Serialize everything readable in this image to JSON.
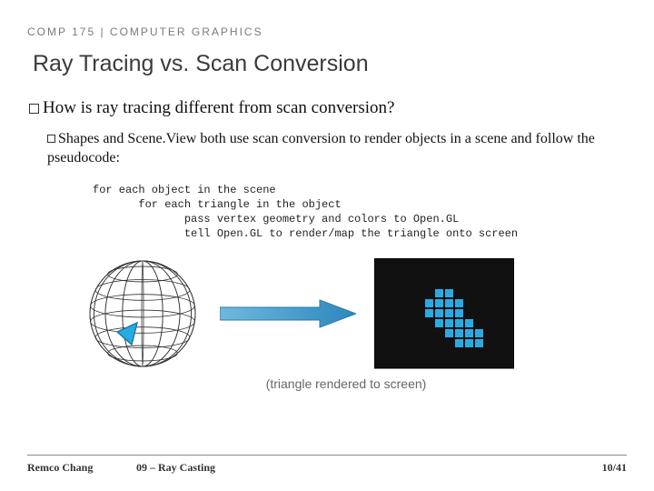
{
  "header": {
    "course": "COMP 175 | COMPUTER GRAPHICS"
  },
  "title": "Ray Tracing vs. Scan Conversion",
  "bullets": {
    "main": "How is ray tracing different from scan conversion?",
    "sub": "Shapes and Scene.View both use scan conversion to render objects in a scene and follow the pseudocode:"
  },
  "code": {
    "l1": "for each object in the scene",
    "l2": "       for each triangle in the object",
    "l3": "              pass vertex geometry and colors to Open.GL",
    "l4": "              tell Open.GL to render/map the triangle onto screen"
  },
  "diagram": {
    "sphere": {
      "stroke": "#333333",
      "triangle_fill": "#29abe2",
      "triangle_stroke": "#1a7aa8"
    },
    "arrow": {
      "fill": "#3d9bd6"
    },
    "grid": {
      "cols": 14,
      "rows": 11,
      "bg": "#111111",
      "gap": "#ffffff",
      "pixel": "#29abe2",
      "filled": [
        [
          3,
          6
        ],
        [
          3,
          7
        ],
        [
          4,
          5
        ],
        [
          4,
          6
        ],
        [
          4,
          7
        ],
        [
          4,
          8
        ],
        [
          5,
          5
        ],
        [
          5,
          6
        ],
        [
          5,
          7
        ],
        [
          5,
          8
        ],
        [
          6,
          6
        ],
        [
          6,
          7
        ],
        [
          6,
          8
        ],
        [
          6,
          9
        ],
        [
          7,
          7
        ],
        [
          7,
          8
        ],
        [
          7,
          9
        ],
        [
          7,
          10
        ],
        [
          8,
          8
        ],
        [
          8,
          9
        ],
        [
          8,
          10
        ]
      ]
    },
    "caption": "(triangle rendered to screen)"
  },
  "footer": {
    "author": "Remco Chang",
    "chapter": "09 – Ray Casting",
    "page": "10/41"
  }
}
